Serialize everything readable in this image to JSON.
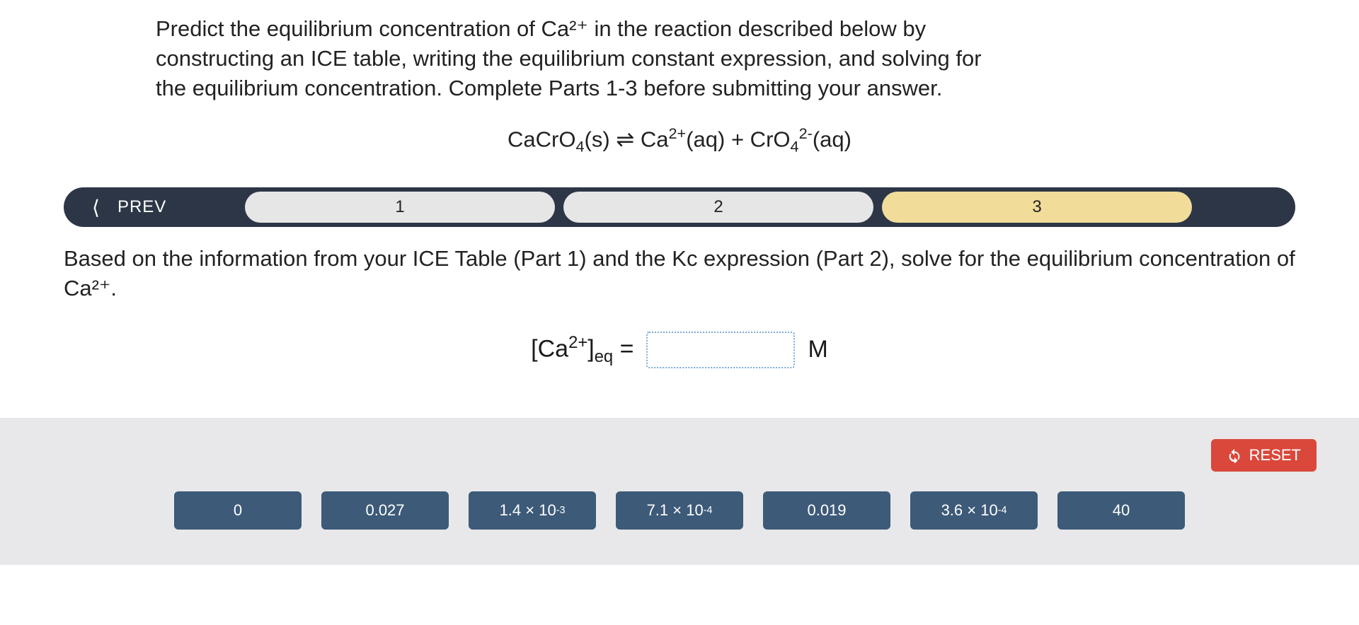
{
  "question": "Predict the equilibrium concentration of Ca²⁺ in the reaction described below by constructing an ICE table, writing the equilibrium constant expression, and solving for the equilibrium concentration. Complete Parts 1-3 before submitting your answer.",
  "equation_html": "CaCrO<span class='sub'>4</span>(s) ⇌ Ca<span class='sup'>2+</span>(aq) + CrO<span class='sub'>4</span><span class='sup'>2-</span>(aq)",
  "nav": {
    "prev_label": "PREV",
    "steps": [
      "1",
      "2",
      "3"
    ],
    "active_index": 2
  },
  "part_text": "Based on the information from your ICE Table (Part 1) and the  Kc expression (Part 2), solve for the equilibrium concentration of Ca²⁺.",
  "answer": {
    "label_html": "[Ca<span class='sup'>2+</span>]<span class='sub'>eq</span>  =",
    "value": "",
    "unit": "M"
  },
  "reset_label": "RESET",
  "tiles_html": [
    "0",
    "0.027",
    "1.4 × 10<span class='sup'>-3</span>",
    "7.1 × 10<span class='sup'>-4</span>",
    "0.019",
    "3.6 × 10<span class='sup'>-4</span>",
    "40"
  ],
  "colors": {
    "nav_bg": "#2c3646",
    "pill_bg": "#e6e6e6",
    "pill_active_bg": "#f1dc9a",
    "tile_bg": "#3d5a78",
    "reset_bg": "#d9483b",
    "tiles_area_bg": "#e8e8ea",
    "drop_border": "#7aa7d6"
  }
}
